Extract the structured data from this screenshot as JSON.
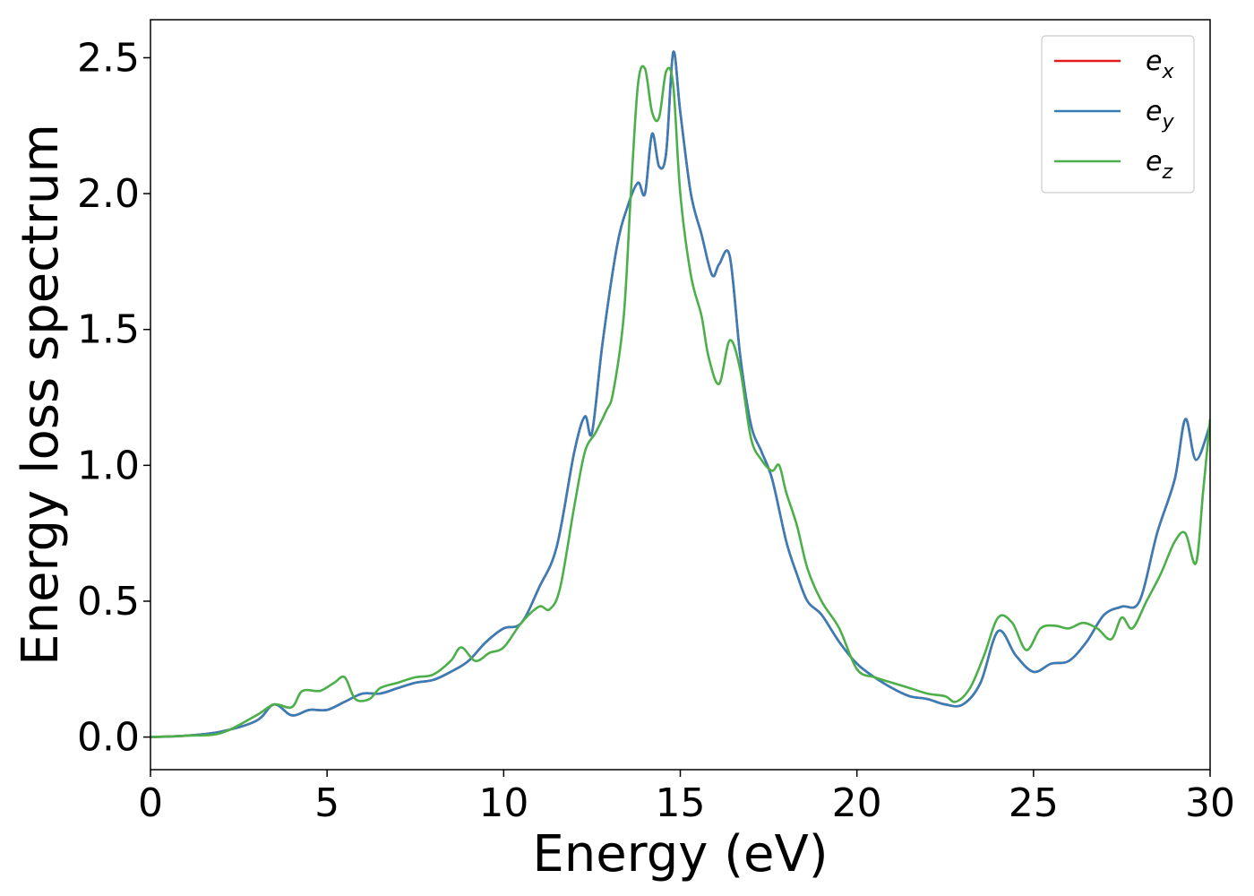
{
  "chart_data": {
    "type": "line",
    "title": "",
    "xlabel": "Energy (eV)",
    "ylabel": "Energy loss spectrum",
    "xlim": [
      0,
      30
    ],
    "ylim": [
      -0.12,
      2.64
    ],
    "xticks": [
      0,
      5,
      10,
      15,
      20,
      25,
      30
    ],
    "xtick_labels": [
      "0",
      "5",
      "10",
      "15",
      "20",
      "25",
      "30"
    ],
    "yticks": [
      0.0,
      0.5,
      1.0,
      1.5,
      2.0,
      2.5
    ],
    "ytick_labels": [
      "0.0",
      "0.5",
      "1.0",
      "1.5",
      "2.0",
      "2.5"
    ],
    "grid": false,
    "legend": {
      "position": "top-right",
      "entries": [
        {
          "base": "e",
          "sub": "x",
          "color": "#e41a1c"
        },
        {
          "base": "e",
          "sub": "y",
          "color": "#377eb8"
        },
        {
          "base": "e",
          "sub": "z",
          "color": "#4daf4a"
        }
      ]
    },
    "series": [
      {
        "name": "e_x",
        "color": "#e41a1c",
        "points": [
          [
            0,
            0
          ],
          [
            1,
            0.005
          ],
          [
            2,
            0.02
          ],
          [
            3,
            0.06
          ],
          [
            3.5,
            0.12
          ],
          [
            4,
            0.08
          ],
          [
            4.5,
            0.1
          ],
          [
            5,
            0.1
          ],
          [
            5.5,
            0.13
          ],
          [
            6,
            0.16
          ],
          [
            6.5,
            0.16
          ],
          [
            7,
            0.18
          ],
          [
            7.5,
            0.2
          ],
          [
            8,
            0.21
          ],
          [
            8.5,
            0.24
          ],
          [
            9,
            0.28
          ],
          [
            9.5,
            0.35
          ],
          [
            10,
            0.4
          ],
          [
            10.5,
            0.42
          ],
          [
            11,
            0.55
          ],
          [
            11.5,
            0.7
          ],
          [
            12,
            1.05
          ],
          [
            12.3,
            1.18
          ],
          [
            12.5,
            1.12
          ],
          [
            12.8,
            1.45
          ],
          [
            13.2,
            1.8
          ],
          [
            13.5,
            1.95
          ],
          [
            13.8,
            2.04
          ],
          [
            14,
            2.0
          ],
          [
            14.2,
            2.22
          ],
          [
            14.4,
            2.1
          ],
          [
            14.6,
            2.15
          ],
          [
            14.8,
            2.52
          ],
          [
            15,
            2.3
          ],
          [
            15.3,
            2.0
          ],
          [
            15.6,
            1.85
          ],
          [
            15.9,
            1.7
          ],
          [
            16.1,
            1.74
          ],
          [
            16.4,
            1.77
          ],
          [
            16.7,
            1.4
          ],
          [
            17,
            1.15
          ],
          [
            17.3,
            1.05
          ],
          [
            17.6,
            0.95
          ],
          [
            18,
            0.72
          ],
          [
            18.3,
            0.6
          ],
          [
            18.6,
            0.5
          ],
          [
            19,
            0.45
          ],
          [
            19.5,
            0.35
          ],
          [
            20,
            0.27
          ],
          [
            20.5,
            0.22
          ],
          [
            21,
            0.18
          ],
          [
            21.5,
            0.15
          ],
          [
            22,
            0.14
          ],
          [
            22.5,
            0.12
          ],
          [
            23,
            0.12
          ],
          [
            23.5,
            0.2
          ],
          [
            24,
            0.39
          ],
          [
            24.5,
            0.3
          ],
          [
            25,
            0.24
          ],
          [
            25.5,
            0.27
          ],
          [
            26,
            0.28
          ],
          [
            26.5,
            0.35
          ],
          [
            27,
            0.45
          ],
          [
            27.5,
            0.48
          ],
          [
            28,
            0.5
          ],
          [
            28.5,
            0.75
          ],
          [
            29,
            0.95
          ],
          [
            29.3,
            1.17
          ],
          [
            29.6,
            1.02
          ],
          [
            30,
            1.15
          ]
        ]
      },
      {
        "name": "e_y",
        "color": "#377eb8",
        "points": [
          [
            0,
            0
          ],
          [
            1,
            0.005
          ],
          [
            2,
            0.02
          ],
          [
            3,
            0.06
          ],
          [
            3.5,
            0.12
          ],
          [
            4,
            0.08
          ],
          [
            4.5,
            0.1
          ],
          [
            5,
            0.1
          ],
          [
            5.5,
            0.13
          ],
          [
            6,
            0.16
          ],
          [
            6.5,
            0.16
          ],
          [
            7,
            0.18
          ],
          [
            7.5,
            0.2
          ],
          [
            8,
            0.21
          ],
          [
            8.5,
            0.24
          ],
          [
            9,
            0.28
          ],
          [
            9.5,
            0.35
          ],
          [
            10,
            0.4
          ],
          [
            10.5,
            0.42
          ],
          [
            11,
            0.55
          ],
          [
            11.5,
            0.7
          ],
          [
            12,
            1.05
          ],
          [
            12.3,
            1.18
          ],
          [
            12.5,
            1.12
          ],
          [
            12.8,
            1.45
          ],
          [
            13.2,
            1.8
          ],
          [
            13.5,
            1.95
          ],
          [
            13.8,
            2.04
          ],
          [
            14,
            2.0
          ],
          [
            14.2,
            2.22
          ],
          [
            14.4,
            2.1
          ],
          [
            14.6,
            2.15
          ],
          [
            14.8,
            2.52
          ],
          [
            15,
            2.3
          ],
          [
            15.3,
            2.0
          ],
          [
            15.6,
            1.85
          ],
          [
            15.9,
            1.7
          ],
          [
            16.1,
            1.74
          ],
          [
            16.4,
            1.77
          ],
          [
            16.7,
            1.4
          ],
          [
            17,
            1.15
          ],
          [
            17.3,
            1.05
          ],
          [
            17.6,
            0.95
          ],
          [
            18,
            0.72
          ],
          [
            18.3,
            0.6
          ],
          [
            18.6,
            0.5
          ],
          [
            19,
            0.45
          ],
          [
            19.5,
            0.35
          ],
          [
            20,
            0.27
          ],
          [
            20.5,
            0.22
          ],
          [
            21,
            0.18
          ],
          [
            21.5,
            0.15
          ],
          [
            22,
            0.14
          ],
          [
            22.5,
            0.12
          ],
          [
            23,
            0.12
          ],
          [
            23.5,
            0.2
          ],
          [
            24,
            0.39
          ],
          [
            24.5,
            0.3
          ],
          [
            25,
            0.24
          ],
          [
            25.5,
            0.27
          ],
          [
            26,
            0.28
          ],
          [
            26.5,
            0.35
          ],
          [
            27,
            0.45
          ],
          [
            27.5,
            0.48
          ],
          [
            28,
            0.5
          ],
          [
            28.5,
            0.75
          ],
          [
            29,
            0.95
          ],
          [
            29.3,
            1.17
          ],
          [
            29.6,
            1.02
          ],
          [
            30,
            1.15
          ]
        ]
      },
      {
        "name": "e_z",
        "color": "#4daf4a",
        "points": [
          [
            0,
            0
          ],
          [
            1,
            0.005
          ],
          [
            2,
            0.015
          ],
          [
            3,
            0.08
          ],
          [
            3.5,
            0.12
          ],
          [
            4,
            0.11
          ],
          [
            4.3,
            0.17
          ],
          [
            4.8,
            0.17
          ],
          [
            5.2,
            0.2
          ],
          [
            5.5,
            0.22
          ],
          [
            5.8,
            0.14
          ],
          [
            6.2,
            0.14
          ],
          [
            6.5,
            0.18
          ],
          [
            7,
            0.2
          ],
          [
            7.5,
            0.22
          ],
          [
            8,
            0.23
          ],
          [
            8.5,
            0.28
          ],
          [
            8.8,
            0.33
          ],
          [
            9.2,
            0.28
          ],
          [
            9.6,
            0.31
          ],
          [
            10,
            0.33
          ],
          [
            10.5,
            0.42
          ],
          [
            11,
            0.48
          ],
          [
            11.3,
            0.47
          ],
          [
            11.6,
            0.55
          ],
          [
            12,
            0.85
          ],
          [
            12.3,
            1.05
          ],
          [
            12.6,
            1.12
          ],
          [
            12.9,
            1.2
          ],
          [
            13.1,
            1.27
          ],
          [
            13.4,
            1.55
          ],
          [
            13.6,
            2.0
          ],
          [
            13.8,
            2.4
          ],
          [
            14,
            2.46
          ],
          [
            14.2,
            2.3
          ],
          [
            14.4,
            2.28
          ],
          [
            14.6,
            2.45
          ],
          [
            14.8,
            2.4
          ],
          [
            15,
            2.0
          ],
          [
            15.3,
            1.7
          ],
          [
            15.6,
            1.55
          ],
          [
            15.8,
            1.4
          ],
          [
            16.1,
            1.3
          ],
          [
            16.4,
            1.46
          ],
          [
            16.7,
            1.35
          ],
          [
            17,
            1.1
          ],
          [
            17.3,
            1.02
          ],
          [
            17.6,
            0.98
          ],
          [
            17.8,
            1.0
          ],
          [
            18,
            0.9
          ],
          [
            18.3,
            0.78
          ],
          [
            18.6,
            0.62
          ],
          [
            19,
            0.5
          ],
          [
            19.5,
            0.4
          ],
          [
            20,
            0.25
          ],
          [
            20.5,
            0.22
          ],
          [
            21,
            0.2
          ],
          [
            21.5,
            0.18
          ],
          [
            22,
            0.16
          ],
          [
            22.5,
            0.15
          ],
          [
            22.8,
            0.13
          ],
          [
            23.2,
            0.18
          ],
          [
            23.6,
            0.3
          ],
          [
            24,
            0.44
          ],
          [
            24.4,
            0.42
          ],
          [
            24.8,
            0.32
          ],
          [
            25.2,
            0.4
          ],
          [
            25.6,
            0.41
          ],
          [
            26,
            0.4
          ],
          [
            26.4,
            0.42
          ],
          [
            26.8,
            0.4
          ],
          [
            27.2,
            0.36
          ],
          [
            27.5,
            0.44
          ],
          [
            27.8,
            0.4
          ],
          [
            28.2,
            0.5
          ],
          [
            28.6,
            0.6
          ],
          [
            29,
            0.72
          ],
          [
            29.3,
            0.75
          ],
          [
            29.6,
            0.64
          ],
          [
            29.8,
            0.9
          ],
          [
            30,
            1.17
          ]
        ]
      }
    ]
  }
}
